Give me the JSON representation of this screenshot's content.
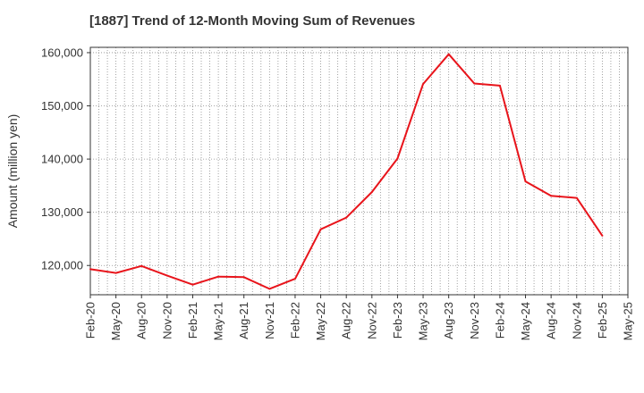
{
  "chart_data": {
    "type": "line",
    "title": "[1887]  Trend of 12-Month Moving Sum of Revenues",
    "xlabel": "",
    "ylabel": "Amount (million yen)",
    "ylim": [
      114500,
      161000
    ],
    "yticks": [
      120000,
      130000,
      140000,
      150000,
      160000
    ],
    "ytick_labels": [
      "120,000",
      "130,000",
      "140,000",
      "150,000",
      "160,000"
    ],
    "xtick_labels": [
      "Feb-20",
      "May-20",
      "Aug-20",
      "Nov-20",
      "Feb-21",
      "May-21",
      "Aug-21",
      "Nov-21",
      "Feb-22",
      "May-22",
      "Aug-22",
      "Nov-22",
      "Feb-23",
      "May-23",
      "Aug-23",
      "Nov-23",
      "Feb-24",
      "May-24",
      "Aug-24",
      "Nov-24",
      "Feb-25",
      "May-25"
    ],
    "grid": true,
    "line_color": "#e8141b",
    "series": [
      {
        "x": [
          "Feb-20",
          "May-20",
          "Aug-20",
          "Nov-20",
          "Feb-21",
          "May-21",
          "Aug-21",
          "Nov-21",
          "Feb-22",
          "May-22",
          "Aug-22",
          "Nov-22",
          "Feb-23",
          "May-23",
          "Aug-23",
          "Nov-23",
          "Feb-24",
          "May-24",
          "Aug-24",
          "Nov-24",
          "Feb-25"
        ],
        "values": [
          119300,
          118600,
          119900,
          118100,
          116400,
          117900,
          117800,
          115600,
          117500,
          126800,
          129000,
          133800,
          140100,
          154100,
          159700,
          154200,
          153800,
          135800,
          133100,
          132700,
          125600
        ]
      }
    ]
  }
}
